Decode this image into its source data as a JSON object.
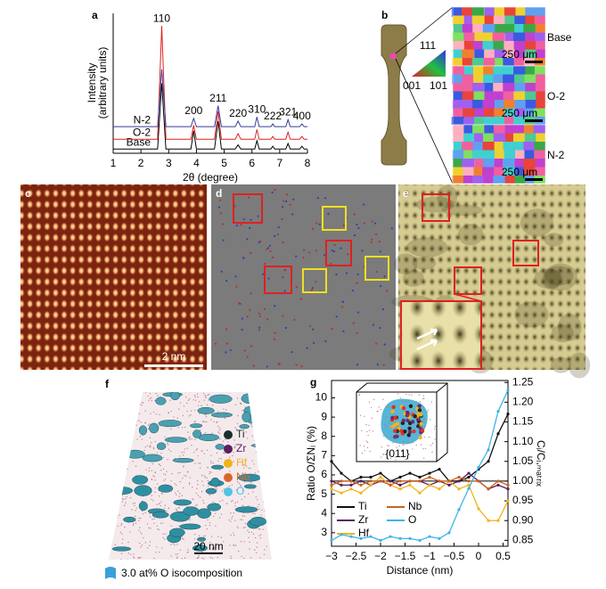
{
  "chart_data": [
    {
      "type": "line",
      "label": "a",
      "x_label": "2θ (degree)",
      "y_label": [
        "Intensity",
        "(arbitrary units)"
      ],
      "x": [
        1,
        2.6,
        2.75,
        2.9,
        3.8,
        3.9,
        4.0,
        4.65,
        4.78,
        4.9,
        5.4,
        5.5,
        5.6,
        6.1,
        6.18,
        6.26,
        6.68,
        6.75,
        6.82,
        7.22,
        7.3,
        7.38,
        7.72,
        7.8,
        7.88,
        8
      ],
      "xlim": [
        1,
        8
      ],
      "xticks": [
        1,
        2,
        3,
        4,
        5,
        6,
        7,
        8
      ],
      "ylim": [
        0,
        10
      ],
      "series": [
        {
          "name": "Base",
          "color": "#000000",
          "values": [
            0.3,
            0.3,
            5.0,
            0.3,
            0.3,
            1.6,
            0.3,
            0.3,
            2.3,
            0.3,
            0.3,
            0.6,
            0.3,
            0.3,
            0.9,
            0.3,
            0.3,
            0.5,
            0.3,
            0.3,
            0.7,
            0.3,
            0.3,
            0.5,
            0.3,
            0.3
          ]
        },
        {
          "name": "O-2",
          "color": "#e02020",
          "values": [
            1.0,
            1.0,
            9.1,
            1.0,
            1.0,
            2.0,
            1.0,
            1.0,
            3.0,
            1.0,
            1.0,
            1.4,
            1.0,
            1.0,
            1.7,
            1.0,
            1.0,
            1.2,
            1.0,
            1.0,
            1.5,
            1.0,
            1.0,
            1.2,
            1.0,
            1.0
          ]
        },
        {
          "name": "N-2",
          "color": "#3a3a9a",
          "values": [
            1.9,
            1.9,
            6.0,
            1.9,
            1.9,
            2.5,
            1.9,
            1.9,
            3.4,
            1.9,
            1.9,
            2.3,
            1.9,
            1.9,
            2.6,
            1.9,
            1.9,
            2.1,
            1.9,
            1.9,
            2.4,
            1.9,
            1.9,
            2.1,
            1.9,
            1.9
          ]
        }
      ],
      "peaks": [
        {
          "label": "110",
          "x": 2.75
        },
        {
          "label": "200",
          "x": 3.9
        },
        {
          "label": "211",
          "x": 4.78
        },
        {
          "label": "220",
          "x": 5.5
        },
        {
          "label": "310",
          "x": 6.18
        },
        {
          "label": "222",
          "x": 6.75
        },
        {
          "label": "321",
          "x": 7.3
        },
        {
          "label": "400",
          "x": 7.8
        }
      ]
    },
    {
      "type": "line",
      "label": "g",
      "x_label": "Distance (nm)",
      "y_label": "Ratio O/ΣNᵢ (%)",
      "y2_label": "Cᵢ/Cᵢ,ₘₐₜᵣᵢₓ",
      "inset_label": "{011}",
      "x": [
        -3,
        -2.8,
        -2.6,
        -2.4,
        -2.2,
        -2,
        -1.8,
        -1.6,
        -1.4,
        -1.2,
        -1,
        -0.8,
        -0.6,
        -0.4,
        -0.2,
        0,
        0.2,
        0.4,
        0.6
      ],
      "xlim": [
        -3,
        0.6
      ],
      "xticks": [
        {
          "value": -3,
          "label": "−3"
        },
        {
          "value": -2.5,
          "label": "−2.5"
        },
        {
          "value": -2,
          "label": "−2"
        },
        {
          "value": -1.5,
          "label": "−1.5"
        },
        {
          "value": -1,
          "label": "−1"
        },
        {
          "value": -0.5,
          "label": "−0.5"
        },
        0,
        0.5
      ],
      "ylim": [
        2.3,
        10.9
      ],
      "yticks": [
        3,
        4,
        5,
        6,
        7,
        8,
        9,
        10
      ],
      "y2lim": [
        0.835,
        1.255
      ],
      "y2ticks": [
        0.85,
        {
          "value": 0.9,
          "label": "0.90"
        },
        0.95,
        {
          "value": 1,
          "label": "1.00"
        },
        1.05,
        {
          "value": 1.1,
          "label": "1.10"
        },
        1.15,
        {
          "value": 1.2,
          "label": "1.20"
        },
        1.25
      ],
      "reference_y2": 1,
      "series": [
        {
          "name": "Ti",
          "color": "#111111",
          "axis": "y2",
          "values": [
            1.05,
            1.02,
            1.0,
            1.01,
            1.01,
            1.02,
            1.0,
            1.01,
            1.02,
            1.01,
            1.02,
            1.03,
            1.0,
            1.0,
            1.01,
            1.03,
            1.05,
            1.12,
            1.17
          ]
        },
        {
          "name": "Zr",
          "color": "#5b1e5e",
          "axis": "y2",
          "values": [
            1.0,
            0.99,
            0.99,
            1.0,
            0.99,
            1.0,
            1.0,
            0.99,
            1.0,
            1.0,
            0.99,
            1.0,
            0.99,
            1.0,
            1.02,
            1.0,
            0.98,
            0.99,
            0.98
          ]
        },
        {
          "name": "Hf",
          "color": "#f2b31b",
          "axis": "y2",
          "values": [
            0.98,
            0.97,
            0.98,
            0.97,
            0.99,
            1.01,
            0.99,
            0.98,
            0.99,
            0.97,
            0.99,
            0.98,
            1.0,
            0.98,
            0.99,
            0.93,
            0.9,
            0.9,
            0.95
          ]
        },
        {
          "name": "Nb",
          "color": "#c8641e",
          "axis": "y2",
          "values": [
            0.99,
            1.0,
            1.0,
            0.99,
            1.0,
            1.0,
            0.99,
            1.0,
            1.0,
            1.0,
            1.01,
            1.0,
            1.0,
            1.01,
            1.0,
            1.0,
            0.98,
            1.0,
            0.99
          ]
        },
        {
          "name": "O",
          "color": "#3fb4e6",
          "values": [
            2.6,
            2.9,
            2.8,
            2.7,
            2.8,
            2.6,
            2.8,
            2.7,
            2.7,
            2.6,
            2.8,
            2.7,
            3.0,
            4.2,
            5.3,
            6.4,
            7.3,
            9.3,
            10.4
          ]
        }
      ]
    }
  ],
  "panel_b": {
    "label": "b",
    "key": [
      "111",
      "001",
      "101"
    ],
    "maps": [
      {
        "name": "Base",
        "color": "#000000",
        "scale": "250 μm"
      },
      {
        "name": "O-2",
        "color": "#e02020",
        "scale": "250 μm"
      },
      {
        "name": "N-2",
        "color": "#3a3a9a",
        "scale": "250 μm"
      }
    ]
  },
  "panel_c": {
    "label": "c",
    "scale": "2 nm"
  },
  "panel_d": {
    "label": "d"
  },
  "panel_e": {
    "label": "e"
  },
  "panel_f": {
    "label": "f",
    "scale": "20 nm",
    "isosurface": "3.0 at% O isocomposition",
    "legend": [
      {
        "name": "Ti",
        "color": "#1a2e2e"
      },
      {
        "name": "Zr",
        "color": "#5b1e5e"
      },
      {
        "name": "Hf",
        "color": "#f2b31b"
      },
      {
        "name": "Nb",
        "color": "#d9662a"
      },
      {
        "name": "O",
        "color": "#4fc3e8"
      }
    ]
  }
}
